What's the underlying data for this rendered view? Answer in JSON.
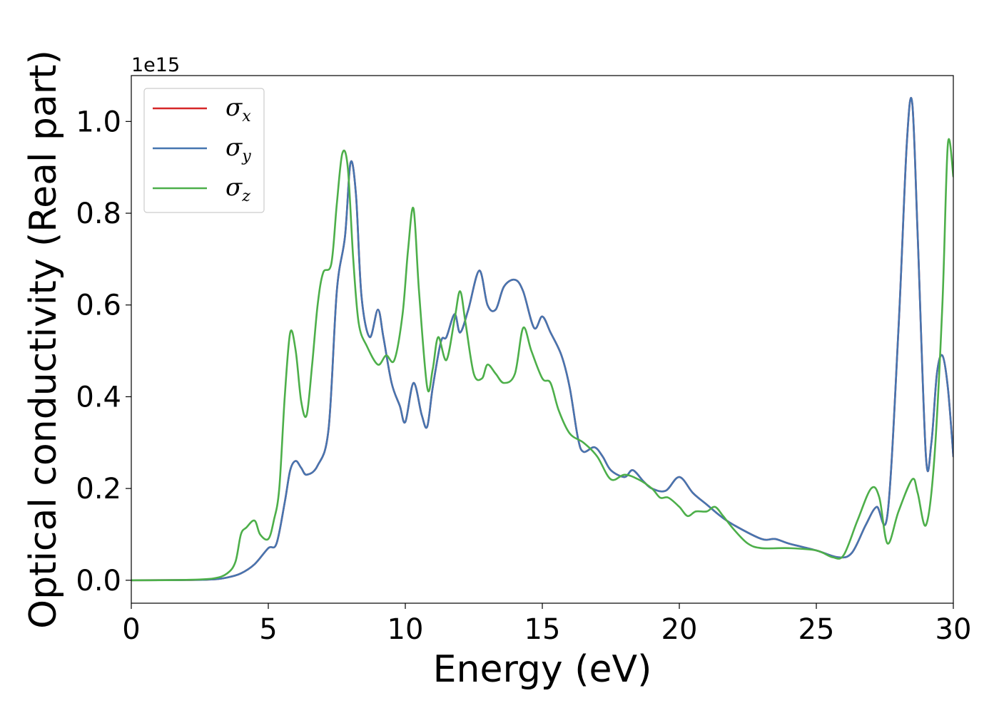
{
  "chart_data": {
    "type": "line",
    "title": "",
    "xlabel": "Energy (eV)",
    "ylabel": "Optical conductivity (Real part)",
    "y_offset_label": "1e15",
    "xlim": [
      0,
      30
    ],
    "ylim": [
      -0.05,
      1.1
    ],
    "grid": false,
    "legend_position": "top-left",
    "xticks": [
      0,
      5,
      10,
      15,
      20,
      25,
      30
    ],
    "xtick_labels": [
      "0",
      "5",
      "10",
      "15",
      "20",
      "25",
      "30"
    ],
    "yticks": [
      0.0,
      0.2,
      0.4,
      0.6,
      0.8,
      1.0
    ],
    "ytick_labels": [
      "0.0",
      "0.2",
      "0.4",
      "0.6",
      "0.8",
      "1.0"
    ],
    "series": [
      {
        "name": "σx",
        "label_main": "σ",
        "label_sub": "x",
        "color": "#d62728",
        "x": [
          0,
          2,
          3,
          3.5,
          4,
          4.5,
          5,
          5.3,
          5.6,
          5.8,
          6.0,
          6.2,
          6.4,
          6.8,
          7.2,
          7.5,
          7.8,
          8.0,
          8.2,
          8.4,
          8.7,
          9.0,
          9.2,
          9.5,
          9.8,
          10.0,
          10.3,
          10.6,
          10.8,
          11.0,
          11.3,
          11.5,
          11.8,
          12.0,
          12.3,
          12.7,
          13.0,
          13.3,
          13.6,
          14.0,
          14.3,
          14.7,
          15.0,
          15.3,
          15.7,
          16.0,
          16.3,
          16.5,
          16.9,
          17.2,
          17.5,
          18.0,
          18.3,
          18.7,
          19.0,
          19.5,
          20.0,
          20.5,
          21.0,
          21.5,
          22.0,
          23.0,
          23.5,
          24.0,
          25.0,
          25.8,
          26.3,
          26.8,
          27.2,
          27.6,
          28.0,
          28.3,
          28.5,
          28.7,
          29.0,
          29.2,
          29.4,
          29.6,
          29.8,
          30.0
        ],
        "y": [
          0,
          0.0005,
          0.002,
          0.006,
          0.015,
          0.035,
          0.07,
          0.08,
          0.17,
          0.24,
          0.26,
          0.245,
          0.23,
          0.25,
          0.33,
          0.63,
          0.75,
          0.91,
          0.84,
          0.62,
          0.53,
          0.59,
          0.53,
          0.43,
          0.38,
          0.345,
          0.43,
          0.36,
          0.335,
          0.42,
          0.52,
          0.53,
          0.58,
          0.54,
          0.59,
          0.675,
          0.6,
          0.59,
          0.64,
          0.655,
          0.63,
          0.55,
          0.575,
          0.54,
          0.49,
          0.42,
          0.31,
          0.28,
          0.29,
          0.27,
          0.24,
          0.225,
          0.24,
          0.215,
          0.2,
          0.195,
          0.225,
          0.19,
          0.165,
          0.14,
          0.12,
          0.09,
          0.09,
          0.08,
          0.065,
          0.05,
          0.06,
          0.12,
          0.16,
          0.145,
          0.55,
          0.95,
          1.04,
          0.75,
          0.27,
          0.3,
          0.45,
          0.49,
          0.42,
          0.27
        ]
      },
      {
        "name": "σy",
        "label_main": "σ",
        "label_sub": "y",
        "color": "#4675b0",
        "x": [
          0,
          2,
          3,
          3.5,
          4,
          4.5,
          5,
          5.3,
          5.6,
          5.8,
          6.0,
          6.2,
          6.4,
          6.8,
          7.2,
          7.5,
          7.8,
          8.0,
          8.2,
          8.4,
          8.7,
          9.0,
          9.2,
          9.5,
          9.8,
          10.0,
          10.3,
          10.6,
          10.8,
          11.0,
          11.3,
          11.5,
          11.8,
          12.0,
          12.3,
          12.7,
          13.0,
          13.3,
          13.6,
          14.0,
          14.3,
          14.7,
          15.0,
          15.3,
          15.7,
          16.0,
          16.3,
          16.5,
          16.9,
          17.2,
          17.5,
          18.0,
          18.3,
          18.7,
          19.0,
          19.5,
          20.0,
          20.5,
          21.0,
          21.5,
          22.0,
          23.0,
          23.5,
          24.0,
          25.0,
          25.8,
          26.3,
          26.8,
          27.2,
          27.6,
          28.0,
          28.3,
          28.5,
          28.7,
          29.0,
          29.2,
          29.4,
          29.6,
          29.8,
          30.0
        ],
        "y": [
          0,
          0.0005,
          0.002,
          0.006,
          0.015,
          0.035,
          0.07,
          0.08,
          0.17,
          0.24,
          0.26,
          0.245,
          0.23,
          0.25,
          0.33,
          0.63,
          0.75,
          0.91,
          0.84,
          0.62,
          0.53,
          0.59,
          0.53,
          0.43,
          0.38,
          0.345,
          0.43,
          0.36,
          0.335,
          0.42,
          0.52,
          0.53,
          0.58,
          0.54,
          0.59,
          0.675,
          0.6,
          0.59,
          0.64,
          0.655,
          0.63,
          0.55,
          0.575,
          0.54,
          0.49,
          0.42,
          0.31,
          0.28,
          0.29,
          0.27,
          0.24,
          0.225,
          0.24,
          0.215,
          0.2,
          0.195,
          0.225,
          0.19,
          0.165,
          0.14,
          0.12,
          0.09,
          0.09,
          0.08,
          0.065,
          0.05,
          0.06,
          0.12,
          0.16,
          0.145,
          0.55,
          0.95,
          1.04,
          0.75,
          0.27,
          0.3,
          0.45,
          0.49,
          0.42,
          0.27
        ]
      },
      {
        "name": "σz",
        "label_main": "σ",
        "label_sub": "z",
        "color": "#4daf4a",
        "x": [
          0,
          2,
          3,
          3.5,
          3.8,
          4.0,
          4.2,
          4.5,
          4.7,
          5.0,
          5.2,
          5.4,
          5.6,
          5.8,
          6.0,
          6.2,
          6.4,
          6.6,
          6.8,
          7.0,
          7.3,
          7.5,
          7.7,
          7.9,
          8.1,
          8.3,
          8.6,
          9.0,
          9.3,
          9.6,
          9.9,
          10.1,
          10.3,
          10.5,
          10.8,
          11.0,
          11.2,
          11.5,
          11.8,
          12.0,
          12.2,
          12.5,
          12.8,
          13.0,
          13.3,
          13.6,
          14.0,
          14.3,
          14.6,
          15.0,
          15.3,
          15.6,
          16.0,
          16.5,
          17.0,
          17.5,
          18.0,
          18.5,
          19.0,
          19.3,
          19.6,
          20.0,
          20.3,
          20.6,
          21.0,
          21.3,
          21.6,
          22.0,
          22.5,
          23.0,
          24.0,
          25.0,
          25.6,
          26.0,
          26.5,
          27.0,
          27.3,
          27.6,
          28.0,
          28.5,
          28.7,
          29.0,
          29.3,
          29.6,
          29.8,
          30.0
        ],
        "y": [
          0,
          0.0008,
          0.004,
          0.015,
          0.04,
          0.1,
          0.115,
          0.13,
          0.1,
          0.09,
          0.13,
          0.2,
          0.4,
          0.54,
          0.5,
          0.39,
          0.36,
          0.47,
          0.6,
          0.67,
          0.69,
          0.82,
          0.93,
          0.9,
          0.7,
          0.56,
          0.51,
          0.47,
          0.49,
          0.48,
          0.58,
          0.72,
          0.81,
          0.63,
          0.42,
          0.46,
          0.53,
          0.48,
          0.57,
          0.63,
          0.56,
          0.45,
          0.44,
          0.47,
          0.45,
          0.43,
          0.45,
          0.55,
          0.5,
          0.44,
          0.43,
          0.37,
          0.32,
          0.3,
          0.27,
          0.22,
          0.23,
          0.22,
          0.2,
          0.18,
          0.18,
          0.16,
          0.14,
          0.15,
          0.15,
          0.16,
          0.14,
          0.11,
          0.08,
          0.07,
          0.07,
          0.065,
          0.05,
          0.055,
          0.13,
          0.2,
          0.18,
          0.08,
          0.15,
          0.22,
          0.19,
          0.12,
          0.26,
          0.6,
          0.95,
          0.88
        ]
      }
    ]
  }
}
